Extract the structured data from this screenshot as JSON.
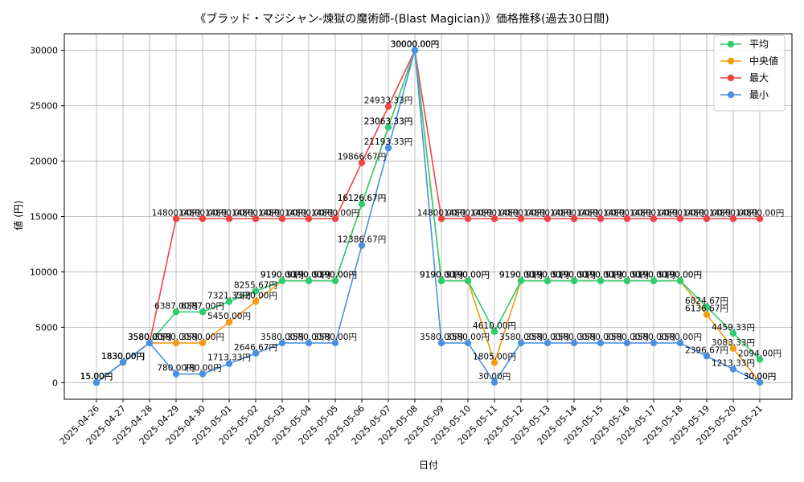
{
  "chart_data": {
    "type": "line",
    "title": "《ブラッド・マジシャン-煉獄の魔術師-(Blast Magician)》価格推移(過去30日間)",
    "xlabel": "日付",
    "ylabel": "値 (円)",
    "ylim": [
      -1500,
      31500
    ],
    "yticks": [
      0,
      5000,
      10000,
      15000,
      20000,
      25000,
      30000
    ],
    "grid": true,
    "legend_position": "top-right",
    "label_suffix": "円",
    "categories": [
      "2025-04-26",
      "2025-04-27",
      "2025-04-28",
      "2025-04-29",
      "2025-04-30",
      "2025-05-01",
      "2025-05-02",
      "2025-05-03",
      "2025-05-04",
      "2025-05-05",
      "2025-05-06",
      "2025-05-07",
      "2025-05-08",
      "2025-05-09",
      "2025-05-10",
      "2025-05-11",
      "2025-05-12",
      "2025-05-13",
      "2025-05-14",
      "2025-05-15",
      "2025-05-16",
      "2025-05-17",
      "2025-05-18",
      "2025-05-19",
      "2025-05-20",
      "2025-05-21"
    ],
    "series": [
      {
        "name": "平均",
        "color": "#2ecc71",
        "values": [
          15.0,
          1830.0,
          3580.0,
          6387.0,
          6387.0,
          7321.33,
          8255.67,
          9190.0,
          9190.0,
          9190.0,
          16126.67,
          23063.33,
          30000.0,
          9190.0,
          9190.0,
          4610.0,
          9190.0,
          9190.0,
          9190.0,
          9190.0,
          9190.0,
          9190.0,
          9190.0,
          6824.67,
          4459.33,
          2094.0
        ]
      },
      {
        "name": "中央値",
        "color": "#f39c12",
        "values": [
          15.0,
          1830.0,
          3580.0,
          3580.0,
          3580.0,
          5450.0,
          7320.0,
          9190.0,
          9190.0,
          9190.0,
          16126.67,
          23063.33,
          30000.0,
          9190.0,
          9190.0,
          1805.0,
          9190.0,
          9190.0,
          9190.0,
          9190.0,
          9190.0,
          9190.0,
          9190.0,
          6136.67,
          3083.33,
          30.0
        ]
      },
      {
        "name": "最大",
        "color": "#ef4444",
        "values": [
          15.0,
          1830.0,
          3580.0,
          14800.0,
          14800.0,
          14800.0,
          14800.0,
          14800.0,
          14800.0,
          14800.0,
          19866.67,
          24933.33,
          30000.0,
          14800.0,
          14800.0,
          14800.0,
          14800.0,
          14800.0,
          14800.0,
          14800.0,
          14800.0,
          14800.0,
          14800.0,
          14800.0,
          14800.0,
          14800.0
        ]
      },
      {
        "name": "最小",
        "color": "#4a90e2",
        "values": [
          15.0,
          1830.0,
          3580.0,
          780.0,
          780.0,
          1713.33,
          2646.67,
          3580.0,
          3580.0,
          3580.0,
          12386.67,
          21193.33,
          30000.0,
          3580.0,
          3580.0,
          30.0,
          3580.0,
          3580.0,
          3580.0,
          3580.0,
          3580.0,
          3580.0,
          3580.0,
          2396.67,
          1213.33,
          30.0
        ]
      }
    ]
  }
}
